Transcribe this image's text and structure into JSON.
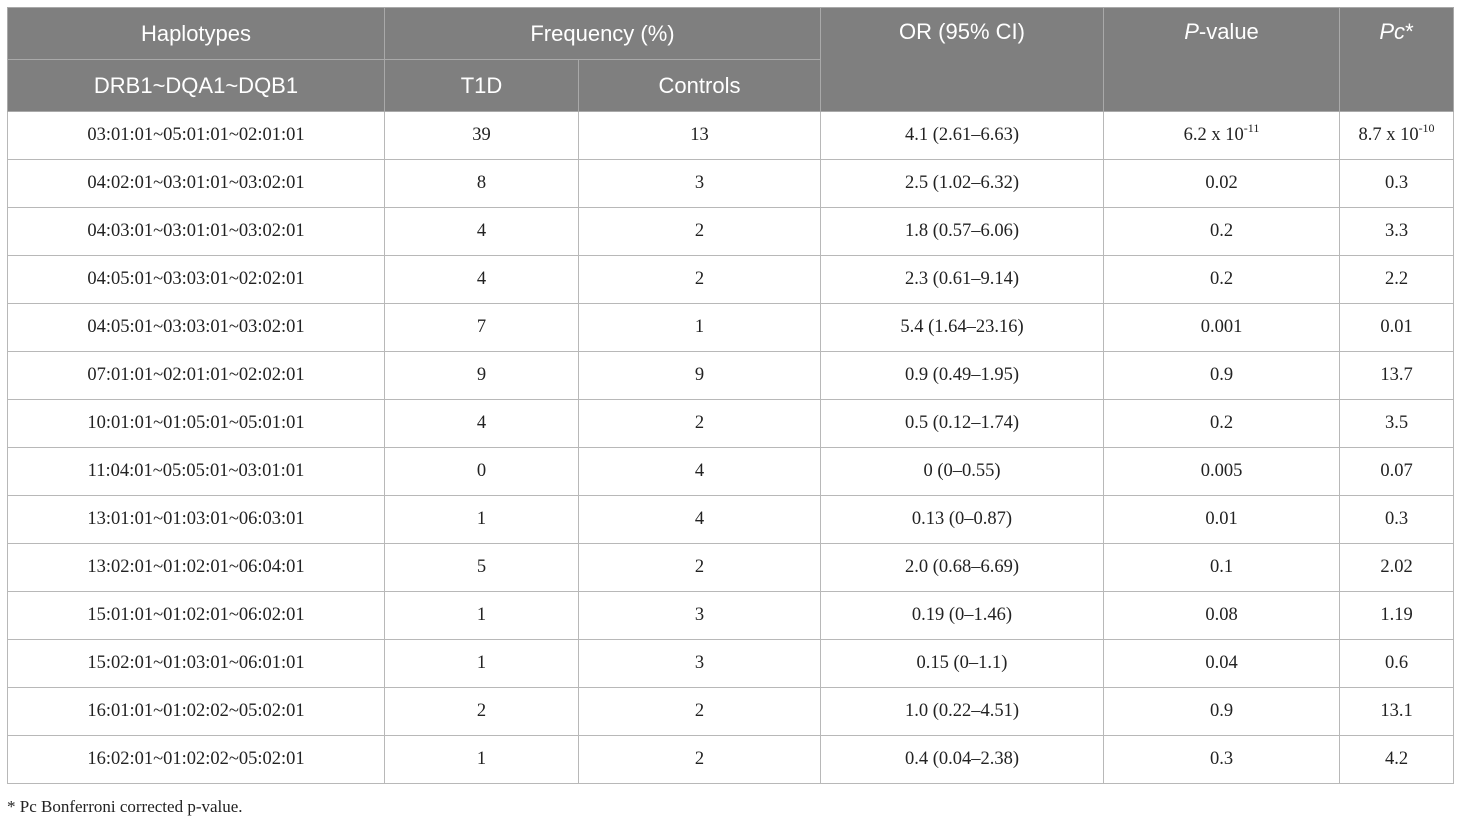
{
  "table": {
    "header": {
      "haplotypes": "Haplotypes",
      "haplotype_sub": "DRB1~DQA1~DQB1",
      "frequency": "Frequency (%)",
      "t1d": "T1D",
      "controls": "Controls",
      "or": "OR (95% CI)",
      "pvalue_italic": "P",
      "pvalue_rest": "-value",
      "pc_italic": "Pc",
      "pc_rest": "*"
    },
    "rows": [
      {
        "haplotype": "03:01:01~05:01:01~02:01:01",
        "t1d": "39",
        "controls": "13",
        "or": "4.1 (2.61–6.63)",
        "p_base": "6.2 x 10",
        "p_exp": "-11",
        "pc_base": "8.7 x 10",
        "pc_exp": "-10"
      },
      {
        "haplotype": "04:02:01~03:01:01~03:02:01",
        "t1d": "8",
        "controls": "3",
        "or": "2.5 (1.02–6.32)",
        "p_base": "0.02",
        "p_exp": "",
        "pc_base": "0.3",
        "pc_exp": ""
      },
      {
        "haplotype": "04:03:01~03:01:01~03:02:01",
        "t1d": "4",
        "controls": "2",
        "or": "1.8 (0.57–6.06)",
        "p_base": "0.2",
        "p_exp": "",
        "pc_base": "3.3",
        "pc_exp": ""
      },
      {
        "haplotype": "04:05:01~03:03:01~02:02:01",
        "t1d": "4",
        "controls": "2",
        "or": "2.3 (0.61–9.14)",
        "p_base": "0.2",
        "p_exp": "",
        "pc_base": "2.2",
        "pc_exp": ""
      },
      {
        "haplotype": "04:05:01~03:03:01~03:02:01",
        "t1d": "7",
        "controls": "1",
        "or": "5.4 (1.64–23.16)",
        "p_base": "0.001",
        "p_exp": "",
        "pc_base": "0.01",
        "pc_exp": ""
      },
      {
        "haplotype": "07:01:01~02:01:01~02:02:01",
        "t1d": "9",
        "controls": "9",
        "or": "0.9 (0.49–1.95)",
        "p_base": "0.9",
        "p_exp": "",
        "pc_base": "13.7",
        "pc_exp": ""
      },
      {
        "haplotype": "10:01:01~01:05:01~05:01:01",
        "t1d": "4",
        "controls": "2",
        "or": "0.5 (0.12–1.74)",
        "p_base": "0.2",
        "p_exp": "",
        "pc_base": "3.5",
        "pc_exp": ""
      },
      {
        "haplotype": "11:04:01~05:05:01~03:01:01",
        "t1d": "0",
        "controls": "4",
        "or": "0 (0–0.55)",
        "p_base": "0.005",
        "p_exp": "",
        "pc_base": "0.07",
        "pc_exp": ""
      },
      {
        "haplotype": "13:01:01~01:03:01~06:03:01",
        "t1d": "1",
        "controls": "4",
        "or": "0.13 (0–0.87)",
        "p_base": "0.01",
        "p_exp": "",
        "pc_base": "0.3",
        "pc_exp": ""
      },
      {
        "haplotype": "13:02:01~01:02:01~06:04:01",
        "t1d": "5",
        "controls": "2",
        "or": "2.0 (0.68–6.69)",
        "p_base": "0.1",
        "p_exp": "",
        "pc_base": "2.02",
        "pc_exp": ""
      },
      {
        "haplotype": "15:01:01~01:02:01~06:02:01",
        "t1d": "1",
        "controls": "3",
        "or": "0.19 (0–1.46)",
        "p_base": "0.08",
        "p_exp": "",
        "pc_base": "1.19",
        "pc_exp": ""
      },
      {
        "haplotype": "15:02:01~01:03:01~06:01:01",
        "t1d": "1",
        "controls": "3",
        "or": "0.15 (0–1.1)",
        "p_base": "0.04",
        "p_exp": "",
        "pc_base": "0.6",
        "pc_exp": ""
      },
      {
        "haplotype": "16:01:01~01:02:02~05:02:01",
        "t1d": "2",
        "controls": "2",
        "or": "1.0 (0.22–4.51)",
        "p_base": "0.9",
        "p_exp": "",
        "pc_base": "13.1",
        "pc_exp": ""
      },
      {
        "haplotype": "16:02:01~01:02:02~05:02:01",
        "t1d": "1",
        "controls": "2",
        "or": "0.4 (0.04–2.38)",
        "p_base": "0.3",
        "p_exp": "",
        "pc_base": "4.2",
        "pc_exp": ""
      }
    ]
  },
  "footnote": "* Pc Bonferroni corrected p-value."
}
